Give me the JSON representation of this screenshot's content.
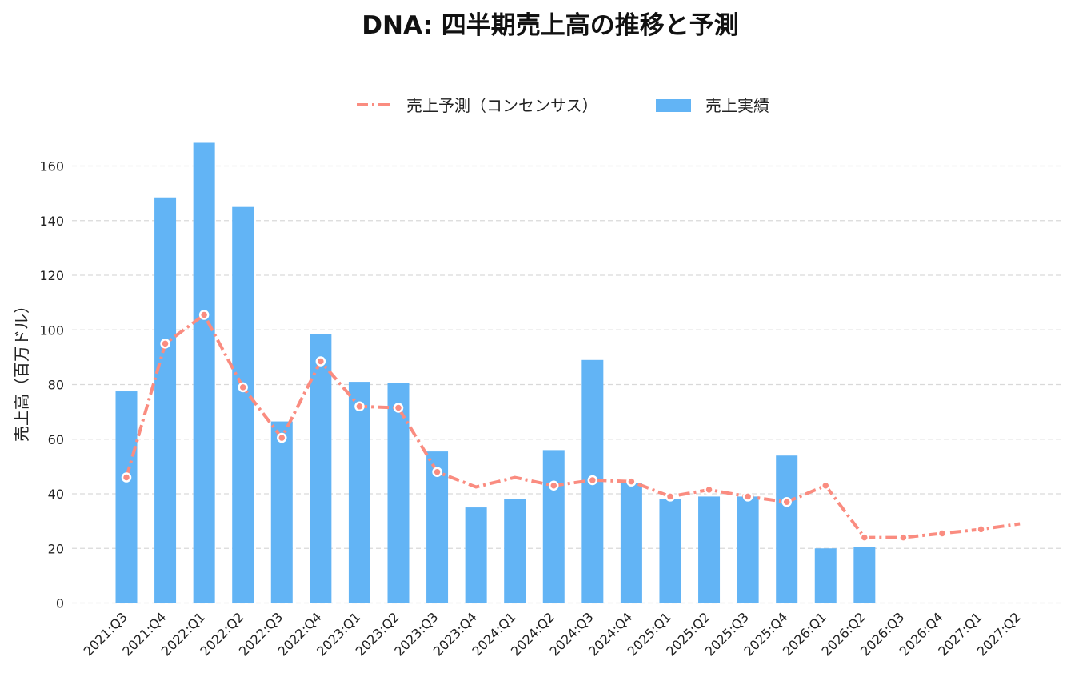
{
  "chart_data": {
    "type": "bar",
    "title": "DNA: 四半期売上高の推移と予測",
    "xlabel": "",
    "ylabel": "売上高（百万ドル）",
    "ylim": [
      0,
      170
    ],
    "yticks": [
      0,
      20,
      40,
      60,
      80,
      100,
      120,
      140,
      160
    ],
    "grid": true,
    "legend_position": "top-center",
    "categories": [
      "2021:Q3",
      "2021:Q4",
      "2022:Q1",
      "2022:Q2",
      "2022:Q3",
      "2022:Q4",
      "2023:Q1",
      "2023:Q2",
      "2023:Q3",
      "2023:Q4",
      "2024:Q1",
      "2024:Q2",
      "2024:Q3",
      "2024:Q4",
      "2025:Q1",
      "2025:Q2",
      "2025:Q3",
      "2025:Q4",
      "2026:Q1",
      "2026:Q2",
      "2026:Q3",
      "2026:Q4",
      "2027:Q1",
      "2027:Q2"
    ],
    "series": [
      {
        "name": "売上予測（コンセンサス）",
        "type": "line",
        "color": "#fa8c80",
        "values": [
          46,
          95,
          105.5,
          79,
          60.5,
          88.5,
          72,
          71.5,
          48,
          42.5,
          46,
          43,
          45,
          44.5,
          39,
          41.5,
          39,
          37,
          43,
          24,
          24,
          25.5,
          27,
          29
        ],
        "markers": [
          true,
          true,
          true,
          true,
          true,
          true,
          true,
          true,
          true,
          false,
          false,
          true,
          true,
          true,
          true,
          true,
          true,
          true,
          true,
          true,
          true,
          true,
          true,
          false
        ]
      },
      {
        "name": "売上実績",
        "type": "bar",
        "color": "#62b4f5",
        "values": [
          77.5,
          148.5,
          168.5,
          145,
          66.5,
          98.5,
          81,
          80.5,
          55.5,
          35,
          38,
          56,
          89,
          44,
          38,
          39,
          39,
          54,
          20,
          20.5,
          null,
          null,
          null,
          null
        ]
      }
    ]
  }
}
